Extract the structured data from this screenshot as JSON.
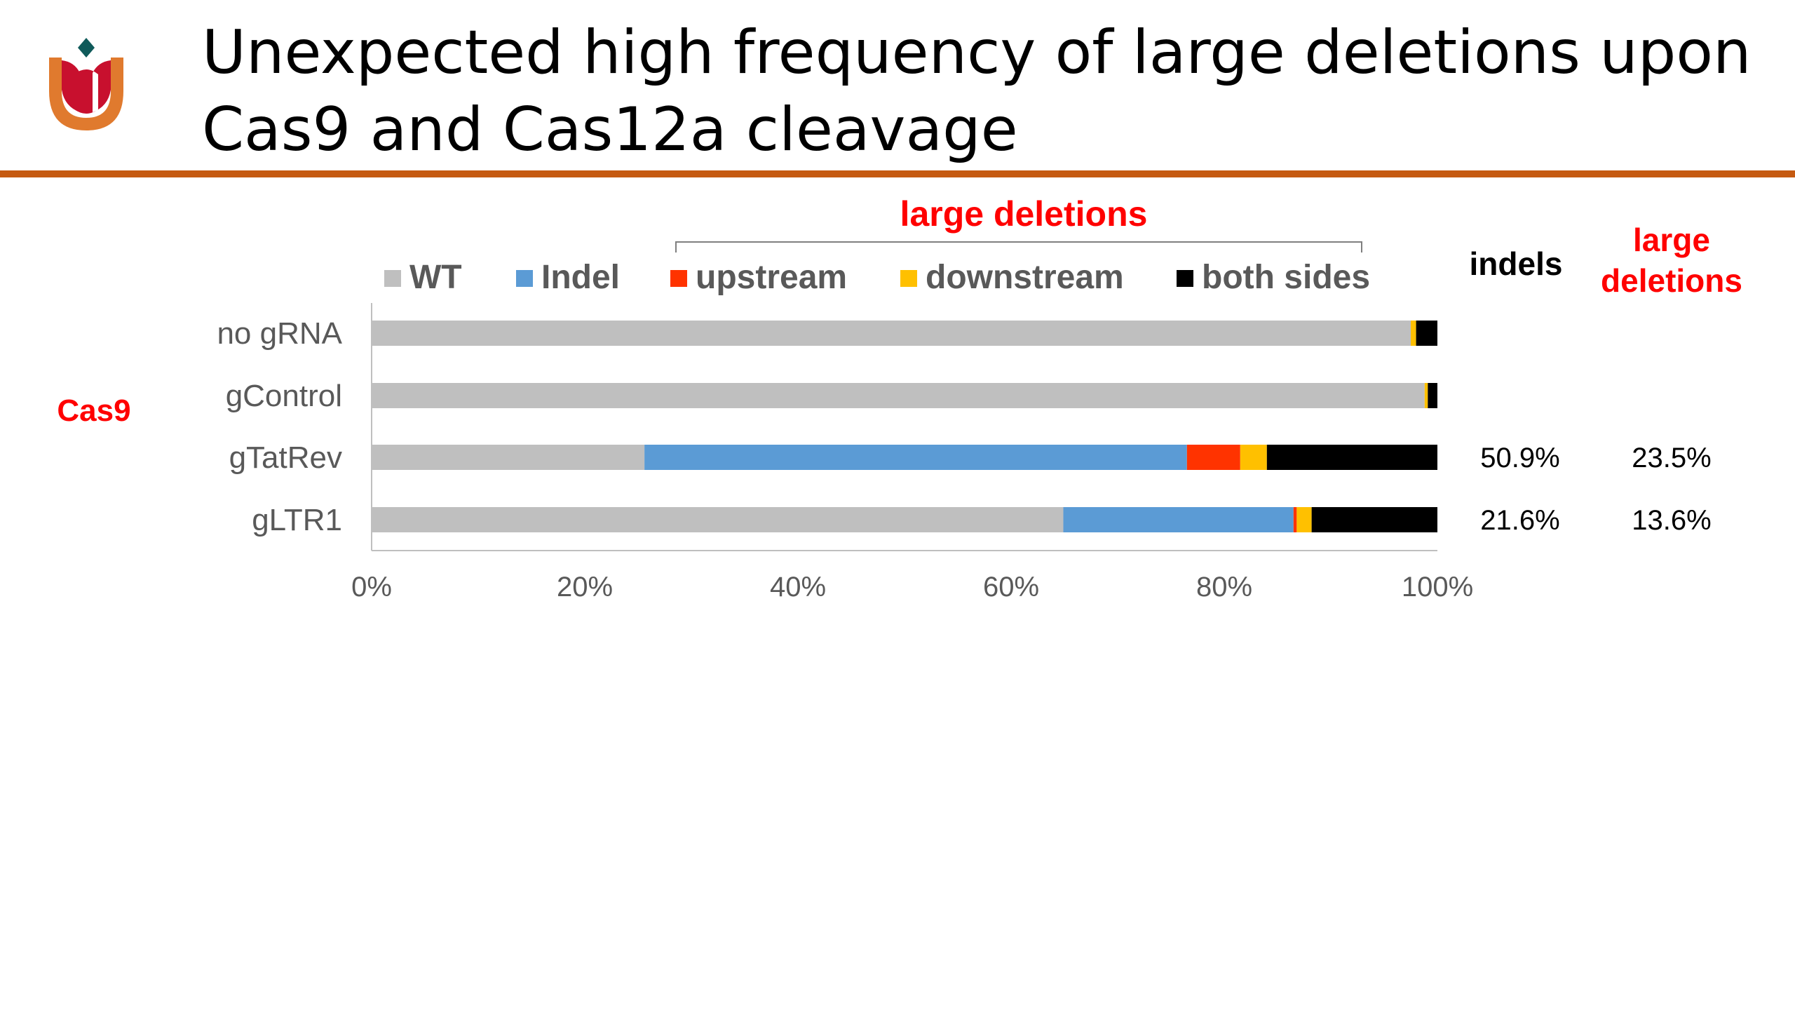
{
  "slide": {
    "title_lines": [
      "Unexpected high frequency of large deletions upon",
      "Cas9 and Cas12a cleavage"
    ],
    "logo_icon": "tulip-u-logo-icon",
    "accent_color": "#c55a11"
  },
  "chart_data": {
    "type": "bar",
    "orientation": "horizontal",
    "stacked": true,
    "percent_stacked": true,
    "group_label": "Cas9",
    "bracket_label": "large deletions",
    "categories": [
      "no gRNA",
      "gControl",
      "gTatRev",
      "gLTR1"
    ],
    "series": [
      {
        "name": "WT",
        "color": "#bfbfbf",
        "values": [
          97.5,
          98.8,
          25.6,
          64.9
        ]
      },
      {
        "name": "Indel",
        "color": "#5b9bd5",
        "values": [
          0,
          0,
          50.9,
          21.6
        ]
      },
      {
        "name": "upstream",
        "color": "#ff3300",
        "values": [
          0,
          0,
          5.0,
          0.3
        ]
      },
      {
        "name": "downstream",
        "color": "#ffc000",
        "values": [
          0.5,
          0.3,
          2.5,
          1.4
        ]
      },
      {
        "name": "both sides",
        "color": "#000000",
        "values": [
          2.0,
          0.9,
          16.0,
          11.8
        ]
      }
    ],
    "xticks": [
      "0%",
      "20%",
      "40%",
      "60%",
      "80%",
      "100%"
    ],
    "xlim": [
      0,
      100
    ],
    "legend_position": "top",
    "side_columns": {
      "indels_header": "indels",
      "large_deletions_header_lines": [
        "large",
        "deletions"
      ],
      "indels": [
        "",
        "",
        "50.9%",
        "21.6%"
      ],
      "large_deletions": [
        "",
        "",
        "23.5%",
        "13.6%"
      ]
    },
    "label_colors": {
      "highlight": "#ff0000",
      "axis_text": "#595959",
      "axis_line": "#bfbfbf"
    }
  }
}
